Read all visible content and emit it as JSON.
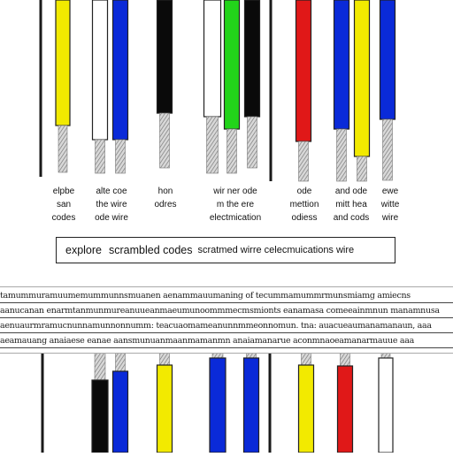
{
  "top_wires": [
    {
      "color": "#1a1a1a",
      "kind": "thin"
    },
    {
      "color": "#f2ea00",
      "kind": "wire"
    },
    {
      "color": "#ffffff",
      "kind": "wire"
    },
    {
      "color": "#0a2ad8",
      "kind": "wire"
    },
    {
      "color": "#0a0a0a",
      "kind": "wire"
    },
    {
      "color": "#ffffff",
      "kind": "wire"
    },
    {
      "color": "#22d41a",
      "kind": "wire"
    },
    {
      "color": "#0a0a0a",
      "kind": "wire"
    },
    {
      "color": "#1a1a1a",
      "kind": "thin"
    },
    {
      "color": "#e01818",
      "kind": "wire"
    },
    {
      "color": "#0a2ad8",
      "kind": "wire"
    },
    {
      "color": "#f2ea00",
      "kind": "wire"
    },
    {
      "color": "#0a2ad8",
      "kind": "wire"
    }
  ],
  "labels": [
    {
      "lines": [
        "elpbe",
        "san",
        "codes"
      ]
    },
    {
      "lines": [
        "alte  coe",
        "the wire",
        "ode wire"
      ]
    },
    {
      "lines": [
        "hon",
        "odres"
      ]
    },
    {
      "lines": [
        "wir ner ode",
        "m the ere",
        "electmication"
      ]
    },
    {
      "lines": [
        "ode",
        "mettion",
        "odiess"
      ]
    },
    {
      "lines": [
        "and ode",
        "mitt hea",
        "and cods"
      ]
    },
    {
      "lines": [
        "ewe",
        "witte",
        "wire"
      ]
    }
  ],
  "banner": {
    "part1": "explore",
    "part2": "scrambled codes",
    "part3": "scratmed wirre celecmuications wire"
  },
  "scrambled_rows": [
    "tamummuramuumemummunnsmuanen aenammauumaning of tecummamummrmunsmiamg amiecns",
    "aanucanan enarmtanmunmureanuueanmaeumunoommmecmsmionts eanamasa comeeainmnun manamnusa",
    "aenuaurmramucnunnamunnonnumm: teacuaomameanunnmmeonnomun. tna: auacueaumanamanaun, aaa",
    "aeamauang anaiaese eanae aansmunuanmaanmamanmn anaiamanarue aconmnaoeamanarmauue aaa"
  ],
  "bottom_wires": [
    {
      "color": "#1a1a1a",
      "kind": "thin"
    },
    {
      "color": "#0a0a0a",
      "kind": "wire"
    },
    {
      "color": "#0a2ad8",
      "kind": "wire"
    },
    {
      "color": "#f2ea00",
      "kind": "wire"
    },
    {
      "color": "#0a2ad8",
      "kind": "wire"
    },
    {
      "color": "#0a2ad8",
      "kind": "wire"
    },
    {
      "color": "#1a1a1a",
      "kind": "thin"
    },
    {
      "color": "#f2ea00",
      "kind": "wire"
    },
    {
      "color": "#e01818",
      "kind": "wire"
    },
    {
      "color": "#ffffff",
      "kind": "wire"
    }
  ]
}
